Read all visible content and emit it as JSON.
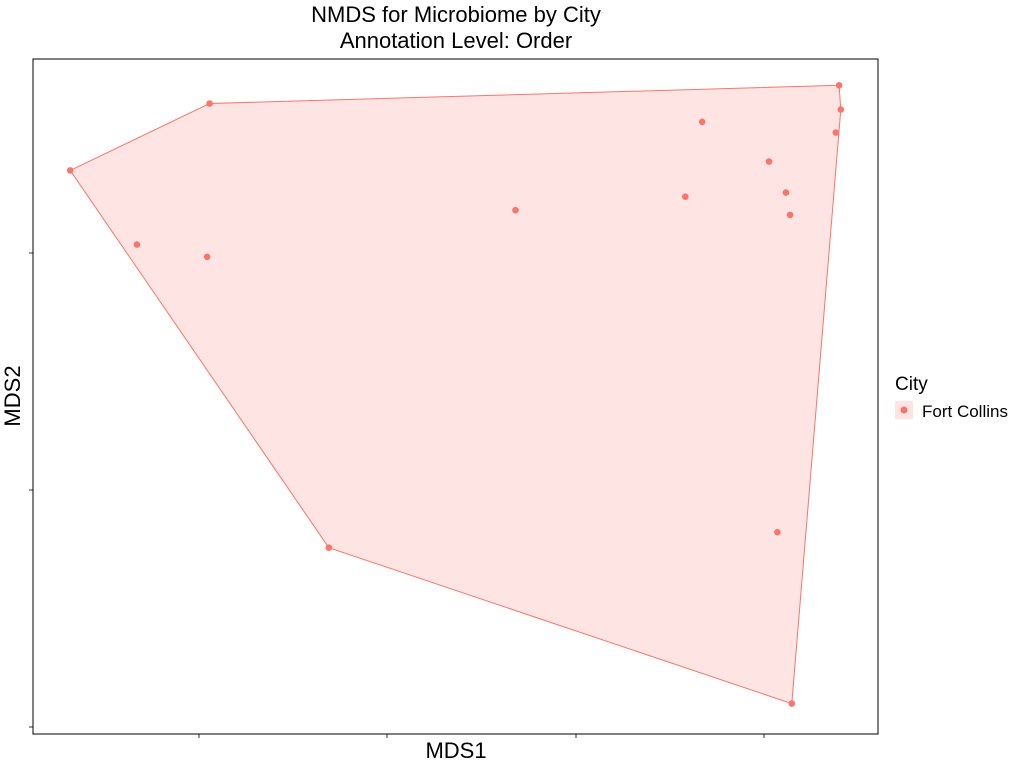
{
  "chart_data": {
    "type": "scatter",
    "title": "NMDS for Microbiome by City",
    "subtitle": "Annotation Level: Order",
    "xlabel": "MDS1",
    "ylabel": "MDS2",
    "xticks_labeled": false,
    "yticks_labeled": false,
    "xlim": [
      0,
      100
    ],
    "ylim": [
      0,
      100
    ],
    "grid": false,
    "legend_position": "right",
    "legend_title": "City",
    "series": [
      {
        "name": "Fort Collins",
        "color": "#F8766D",
        "points": [
          {
            "x": 4.4,
            "y": 83.5
          },
          {
            "x": 20.9,
            "y": 93.4
          },
          {
            "x": 95.4,
            "y": 96.1
          },
          {
            "x": 95.6,
            "y": 92.5
          },
          {
            "x": 95.0,
            "y": 89.1
          },
          {
            "x": 79.2,
            "y": 90.7
          },
          {
            "x": 87.1,
            "y": 84.8
          },
          {
            "x": 89.1,
            "y": 80.2
          },
          {
            "x": 77.2,
            "y": 79.6
          },
          {
            "x": 57.1,
            "y": 77.6
          },
          {
            "x": 89.6,
            "y": 76.9
          },
          {
            "x": 12.3,
            "y": 72.5
          },
          {
            "x": 20.6,
            "y": 70.7
          },
          {
            "x": 88.1,
            "y": 29.9
          },
          {
            "x": 35.0,
            "y": 27.6
          },
          {
            "x": 89.8,
            "y": 4.5
          }
        ],
        "hull_order": [
          0,
          1,
          2,
          3,
          15,
          14
        ]
      }
    ]
  }
}
